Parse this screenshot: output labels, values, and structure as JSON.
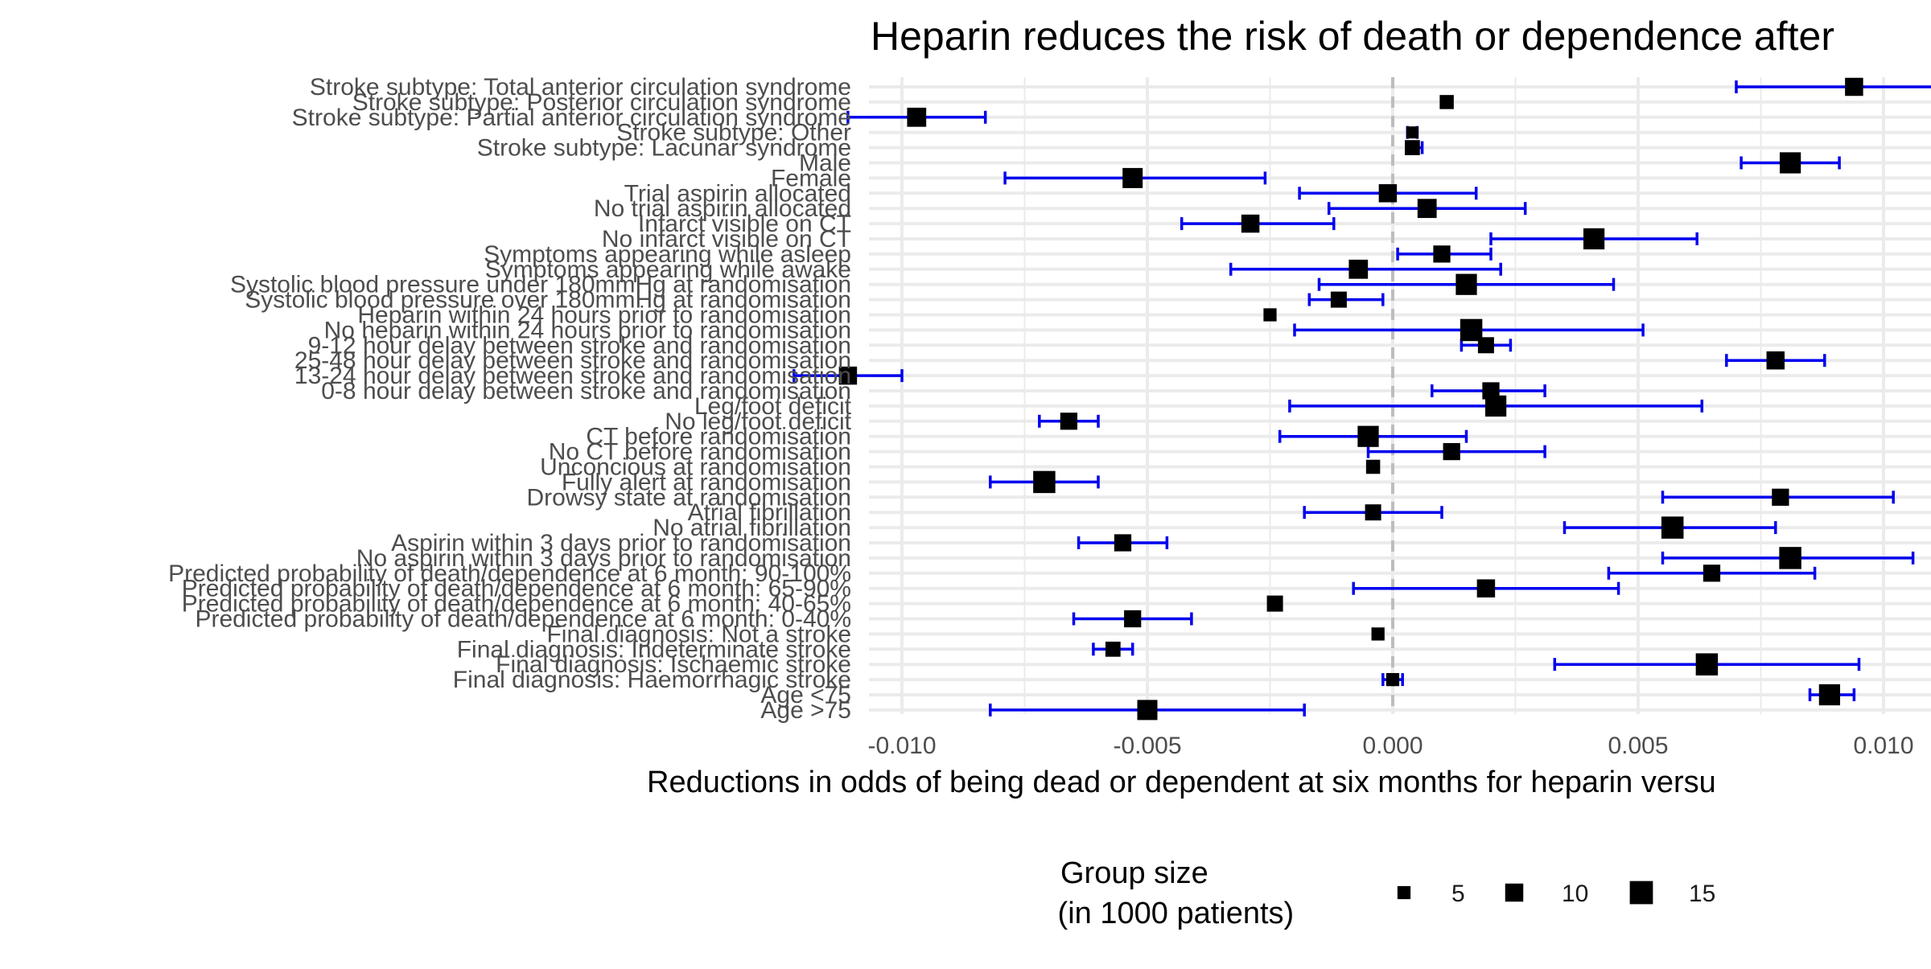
{
  "chart_data": {
    "type": "forest",
    "title": "Heparin reduces the risk of death or dependence after",
    "xlabel": "Reductions in odds of being dead or dependent at six months for heparin versu",
    "ylabel": "",
    "xlim": [
      -0.0133,
      0.0133
    ],
    "x_ticks": [
      -0.01,
      -0.005,
      0.0,
      0.005,
      0.01
    ],
    "x_tick_labels": [
      "-0.010",
      "-0.005",
      "0.000",
      "0.005",
      "0.010"
    ],
    "reference_line": 0,
    "grid": true,
    "legend": {
      "title_line1": "Group size",
      "title_line2": " (in 1000 patients)",
      "position": "bottom",
      "items": [
        {
          "label": "5",
          "size": 5
        },
        {
          "label": "10",
          "size": 10
        },
        {
          "label": "15",
          "size": 15
        }
      ]
    },
    "colors": {
      "point": "#000000",
      "error_bar": "#0000ee",
      "reference_line": "#bdbdbd",
      "grid": "#ebebeb"
    },
    "rows": [
      {
        "label": "Stroke subtype: Total anterior circulation syndrome",
        "estimate": 0.0094,
        "low": 0.007,
        "high": 0.012,
        "size": 10
      },
      {
        "label": "Stroke subtype: Posterior circulation syndrome",
        "estimate": 0.0011,
        "low": 0.001,
        "high": 0.0012,
        "size": 6
      },
      {
        "label": "Stroke subtype: Partial anterior circulation syndrome",
        "estimate": -0.0097,
        "low": -0.0111,
        "high": -0.0083,
        "size": 11
      },
      {
        "label": "Stroke subtype: Other",
        "estimate": 0.0004,
        "low": 0.0003,
        "high": 0.0005,
        "size": 4
      },
      {
        "label": "Stroke subtype: Lacunar syndrome",
        "estimate": 0.0004,
        "low": 0.0003,
        "high": 0.0006,
        "size": 7
      },
      {
        "label": "Male",
        "estimate": 0.0081,
        "low": 0.0071,
        "high": 0.0091,
        "size": 13
      },
      {
        "label": "Female",
        "estimate": -0.0053,
        "low": -0.0079,
        "high": -0.0026,
        "size": 12
      },
      {
        "label": "Trial aspirin allocated",
        "estimate": -0.0001,
        "low": -0.0019,
        "high": 0.0017,
        "size": 10
      },
      {
        "label": "No trial aspirin allocated",
        "estimate": 0.0007,
        "low": -0.0013,
        "high": 0.0027,
        "size": 11
      },
      {
        "label": "Infarct visible on CT",
        "estimate": -0.0029,
        "low": -0.0043,
        "high": -0.0012,
        "size": 10
      },
      {
        "label": "No infarct visible on CT",
        "estimate": 0.0041,
        "low": 0.002,
        "high": 0.0062,
        "size": 13
      },
      {
        "label": "Symptoms appearing while asleep",
        "estimate": 0.001,
        "low": 0.0001,
        "high": 0.002,
        "size": 9
      },
      {
        "label": "Symptoms appearing while awake",
        "estimate": -0.0007,
        "low": -0.0033,
        "high": 0.0022,
        "size": 11
      },
      {
        "label": "Systolic blood pressure under 180mmHg at randomisation",
        "estimate": 0.0015,
        "low": -0.0015,
        "high": 0.0045,
        "size": 13
      },
      {
        "label": "Systolic blood pressure over 180mmHg at randomisation",
        "estimate": -0.0011,
        "low": -0.0017,
        "high": -0.0002,
        "size": 8
      },
      {
        "label": "Heparin within 24 hours prior to randomisation",
        "estimate": -0.0025,
        "low": -0.0026,
        "high": -0.0024,
        "size": 5
      },
      {
        "label": "No heparin within 24 hours prior to randomisation",
        "estimate": 0.0016,
        "low": -0.002,
        "high": 0.0051,
        "size": 14
      },
      {
        "label": "9-12 hour delay between stroke and randomisation",
        "estimate": 0.0019,
        "low": 0.0014,
        "high": 0.0024,
        "size": 8
      },
      {
        "label": "25-48 hour delay between stroke and randomisation",
        "estimate": 0.0078,
        "low": 0.0068,
        "high": 0.0088,
        "size": 10
      },
      {
        "label": "13-24 hour delay between stroke and randomisation",
        "estimate": -0.0111,
        "low": -0.0122,
        "high": -0.01,
        "size": 10
      },
      {
        "label": "0-8 hour delay between stroke and randomisation",
        "estimate": 0.002,
        "low": 0.0008,
        "high": 0.0031,
        "size": 9
      },
      {
        "label": "Leg/foot deficit",
        "estimate": 0.0021,
        "low": -0.0021,
        "high": 0.0063,
        "size": 13
      },
      {
        "label": "No leg/foot deficit",
        "estimate": -0.0066,
        "low": -0.0072,
        "high": -0.006,
        "size": 9
      },
      {
        "label": "CT before randomisation",
        "estimate": -0.0005,
        "low": -0.0023,
        "high": 0.0015,
        "size": 13
      },
      {
        "label": "No CT before randomisation",
        "estimate": 0.0012,
        "low": -0.0005,
        "high": 0.0031,
        "size": 9
      },
      {
        "label": "Unconcious at randomisation",
        "estimate": -0.0004,
        "low": -0.0005,
        "high": -0.0003,
        "size": 6
      },
      {
        "label": "Fully alert at randomisation",
        "estimate": -0.0071,
        "low": -0.0082,
        "high": -0.006,
        "size": 14
      },
      {
        "label": "Drowsy state at randomisation",
        "estimate": 0.0079,
        "low": 0.0055,
        "high": 0.0102,
        "size": 9
      },
      {
        "label": "Atrial fibrillation",
        "estimate": -0.0004,
        "low": -0.0018,
        "high": 0.001,
        "size": 8
      },
      {
        "label": "No atrial fibrillation",
        "estimate": 0.0057,
        "low": 0.0035,
        "high": 0.0078,
        "size": 14
      },
      {
        "label": "Aspirin within 3 days prior to randomisation",
        "estimate": -0.0055,
        "low": -0.0064,
        "high": -0.0046,
        "size": 9
      },
      {
        "label": "No aspirin within 3 days prior to randomisation",
        "estimate": 0.0081,
        "low": 0.0055,
        "high": 0.0106,
        "size": 14
      },
      {
        "label": "Predicted probability of death/dependence at 6 month: 90-100%",
        "estimate": 0.0065,
        "low": 0.0044,
        "high": 0.0086,
        "size": 9
      },
      {
        "label": "Predicted probability of death/dependence at 6 month: 65-90%",
        "estimate": 0.0019,
        "low": -0.0008,
        "high": 0.0046,
        "size": 10
      },
      {
        "label": "Predicted probability of death/dependence at 6 month: 40-65%",
        "estimate": -0.0024,
        "low": -0.0025,
        "high": -0.0023,
        "size": 8
      },
      {
        "label": "Predicted probability of death/dependence at 6 month: 0-40%",
        "estimate": -0.0053,
        "low": -0.0065,
        "high": -0.0041,
        "size": 9
      },
      {
        "label": "Final diagnosis: Not a stroke",
        "estimate": -0.0003,
        "low": -0.0004,
        "high": -0.0002,
        "size": 5
      },
      {
        "label": "Final diagnosis: Indeterminate stroke",
        "estimate": -0.0057,
        "low": -0.0061,
        "high": -0.0053,
        "size": 7
      },
      {
        "label": "Final diagnosis: Ischaemic stroke",
        "estimate": 0.0064,
        "low": 0.0033,
        "high": 0.0095,
        "size": 14
      },
      {
        "label": "Final diagnosis: Haemorrhagic stroke",
        "estimate": 0.0,
        "low": -0.0002,
        "high": 0.0002,
        "size": 5
      },
      {
        "label": "Age <75",
        "estimate": 0.0089,
        "low": 0.0085,
        "high": 0.0094,
        "size": 13
      },
      {
        "label": "Age >75",
        "estimate": -0.005,
        "low": -0.0082,
        "high": -0.0018,
        "size": 12
      }
    ]
  }
}
